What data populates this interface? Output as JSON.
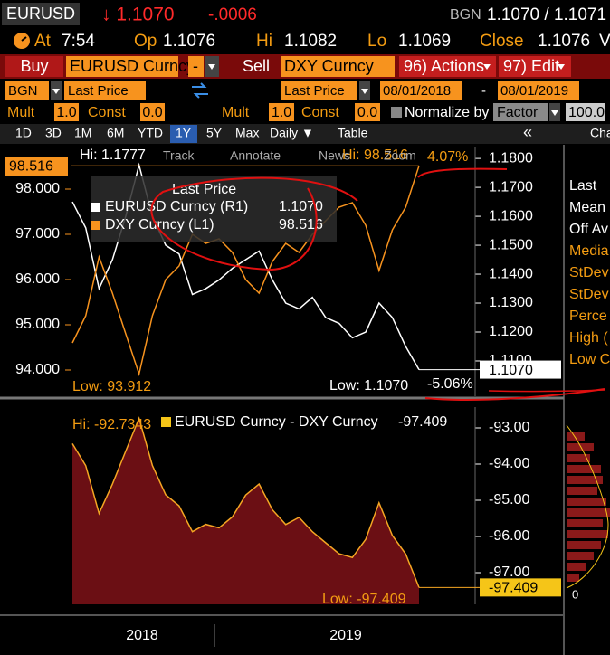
{
  "header": {
    "ticker": "EURUSD",
    "price": "↓ 1.1070",
    "change": "-.0006",
    "source": "BGN",
    "bid_ask": "1.1070 / 1.1071"
  },
  "quote": {
    "at_label": "At",
    "time": "7:54",
    "open_label": "Op",
    "open": "1.1076",
    "high_label": "Hi",
    "high": "1.1082",
    "low_label": "Lo",
    "low": "1.1069",
    "close_label": "Close",
    "close": "1.1076",
    "more": "V"
  },
  "toolbar": {
    "buy": "Buy",
    "security1": "EURUSD Curncy",
    "operator": "-",
    "sell": "Sell",
    "security2": "DXY Curncy",
    "actions": "96) Actions",
    "edit": "97) Edit"
  },
  "fields": {
    "source": "BGN",
    "field1": "Last Price",
    "field2": "Last Price",
    "start": "08/01/2018",
    "dash": "-",
    "end": "08/01/2019"
  },
  "params": {
    "mult_label": "Mult",
    "mult1": "1.0",
    "const_label": "Const",
    "const1": "0.0",
    "mult2": "1.0",
    "const2": "0.0",
    "normalize": "Normalize by",
    "factor": "Factor",
    "factor_value": "100.0"
  },
  "periods": [
    "1D",
    "3D",
    "1M",
    "6M",
    "YTD",
    "1Y",
    "5Y",
    "Max"
  ],
  "selected_period": 5,
  "frequency": "Daily ▼",
  "table": "Table",
  "collapse": "«",
  "chart_tab": "Cha",
  "chart_tools": [
    "Track",
    "Annotate",
    "News",
    "Zoom"
  ],
  "chart_data": [
    {
      "type": "line",
      "legend_title": "Last Price",
      "yaxis_side": "left",
      "series": [
        {
          "name": "EURUSD Curncy (R1)",
          "color": "#ffffff",
          "axis": "y2",
          "last_label": "1.1070",
          "values": [
            1.165,
            1.156,
            1.135,
            1.145,
            1.16,
            1.1777,
            1.16,
            1.15,
            1.147,
            1.133,
            1.135,
            1.138,
            1.142,
            1.145,
            1.148,
            1.138,
            1.13,
            1.128,
            1.132,
            1.125,
            1.123,
            1.118,
            1.12,
            1.13,
            1.125,
            1.115,
            1.107
          ]
        },
        {
          "name": "DXY Curncy (L1)",
          "color": "#f7931e",
          "last_label": "98.516",
          "values": [
            94.6,
            95.2,
            96.5,
            95.7,
            94.8,
            93.912,
            95.2,
            96.0,
            96.3,
            97.0,
            96.8,
            96.9,
            96.6,
            96.0,
            95.7,
            96.4,
            96.8,
            96.6,
            97.0,
            97.3,
            97.6,
            97.7,
            97.2,
            96.2,
            97.1,
            97.6,
            98.516
          ]
        }
      ],
      "ylim": [
        93.42,
        98.94
      ],
      "yticks": [
        {
          "value": 94,
          "label": "94.000"
        },
        {
          "value": 95,
          "label": "95.000"
        },
        {
          "value": 96,
          "label": "96.000"
        },
        {
          "value": 97,
          "label": "97.000"
        },
        {
          "value": 98,
          "label": "98.000"
        }
      ],
      "y2lim": [
        1.0978,
        1.1841
      ],
      "y2ticks": [
        {
          "value": 1.11,
          "label": "1.1100"
        },
        {
          "value": 1.12,
          "label": "1.1200"
        },
        {
          "value": 1.13,
          "label": "1.1300"
        },
        {
          "value": 1.14,
          "label": "1.1400"
        },
        {
          "value": 1.15,
          "label": "1.1500"
        },
        {
          "value": 1.16,
          "label": "1.1600"
        },
        {
          "value": 1.17,
          "label": "1.1700"
        },
        {
          "value": 1.18,
          "label": "1.1800"
        }
      ],
      "annotations": [
        "Hi: 1.1777",
        "Low: 93.912",
        "Hi: 98.516",
        "4.07%",
        "Low: 1.1070",
        "-5.06%"
      ]
    },
    {
      "type": "area",
      "yaxis_side": "right",
      "series": [
        {
          "name": "EURUSD Curncy - DXY Curncy",
          "color": "#f5a623",
          "fill": "#6b0f14",
          "last_label": "-97.409",
          "values": [
            -93.435,
            -94.044,
            -95.365,
            -94.555,
            -93.64,
            -92.7343,
            -94.04,
            -94.85,
            -95.153,
            -95.867,
            -95.665,
            -95.762,
            -95.458,
            -94.855,
            -94.552,
            -95.262,
            -95.67,
            -95.472,
            -95.868,
            -96.175,
            -96.477,
            -96.582,
            -96.08,
            -95.07,
            -95.975,
            -96.485,
            -97.409
          ]
        }
      ],
      "ylim": [
        -97.875,
        -92.425
      ],
      "yticks": [
        {
          "value": -93,
          "label": "-93.00"
        },
        {
          "value": -94,
          "label": "-94.00"
        },
        {
          "value": -95,
          "label": "-95.00"
        },
        {
          "value": -96,
          "label": "-96.00"
        },
        {
          "value": -97,
          "label": "-97.00"
        }
      ],
      "annotations": [
        "Hi: -92.7343",
        "Low: -97.409"
      ]
    }
  ],
  "x_labels": [
    "2018",
    "2019"
  ],
  "stats_panel": [
    "Last",
    "Mean",
    "Off Av",
    "Media",
    "StDev",
    "StDev",
    "Perce",
    "High (",
    "Low C"
  ],
  "histogram_axis": "0"
}
